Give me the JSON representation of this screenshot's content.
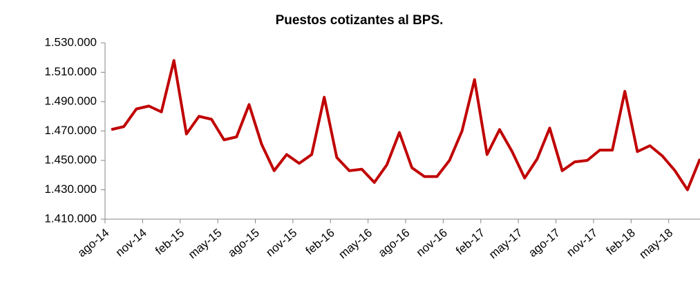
{
  "chart_data": {
    "type": "line",
    "title": "Puestos cotizantes al BPS.",
    "categories": [
      "ago-14",
      null,
      null,
      "nov-14",
      null,
      null,
      "feb-15",
      null,
      null,
      "may-15",
      null,
      null,
      "ago-15",
      null,
      null,
      "nov-15",
      null,
      null,
      "feb-16",
      null,
      null,
      "may-16",
      null,
      null,
      "ago-16",
      null,
      null,
      "nov-16",
      null,
      null,
      "feb-17",
      null,
      null,
      "may-17",
      null,
      null,
      "ago-17",
      null,
      null,
      "nov-17",
      null,
      null,
      "feb-18",
      null,
      null,
      "may-18",
      null,
      null
    ],
    "values": [
      1471000,
      1473000,
      1485000,
      1487000,
      1483000,
      1518000,
      1468000,
      1480000,
      1478000,
      1464000,
      1466000,
      1488000,
      1461000,
      1443000,
      1454000,
      1448000,
      1454000,
      1493000,
      1452000,
      1443000,
      1444000,
      1435000,
      1447000,
      1469000,
      1445000,
      1439000,
      1439000,
      1450000,
      1470000,
      1505000,
      1454000,
      1471000,
      1456000,
      1438000,
      1451000,
      1472000,
      1443000,
      1449000,
      1450000,
      1457000,
      1457000,
      1497000,
      1456000,
      1460000,
      1453000,
      1443000,
      1430000,
      1451000
    ],
    "color": "#c00000",
    "ylim": [
      1410000,
      1530000
    ],
    "yticks": [
      {
        "value": 1410000,
        "label": "1.410.000"
      },
      {
        "value": 1430000,
        "label": "1.430.000"
      },
      {
        "value": 1450000,
        "label": "1.450.000"
      },
      {
        "value": 1470000,
        "label": "1.470.000"
      },
      {
        "value": 1490000,
        "label": "1.490.000"
      },
      {
        "value": 1510000,
        "label": "1.510.000"
      },
      {
        "value": 1530000,
        "label": "1.530.000"
      }
    ]
  }
}
